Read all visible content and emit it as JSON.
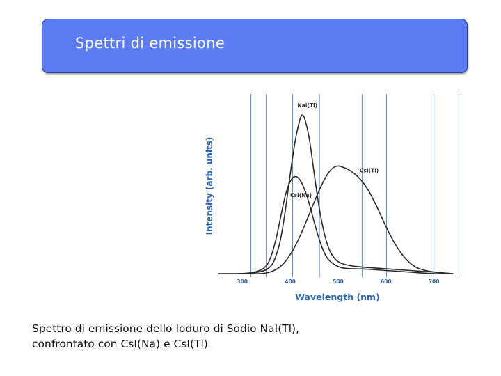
{
  "slide": {
    "title": "Spettri di emissione",
    "caption_line1": "Spettro di emissione dello Ioduro di Sodio NaI(Tl),",
    "caption_line2": "confrontato con CsI(Na) e CsI(Tl)"
  },
  "colors": {
    "title_bg": "#5b7cf3",
    "gridline": "#4a8fd6",
    "axis_text": "#2b66b3",
    "curve": "#2a2a2a"
  },
  "chart_data": {
    "type": "line",
    "title": "",
    "xlabel": "Wavelength (nm)",
    "ylabel": "Intensity (arb. units)",
    "xlim": [
      230,
      760
    ],
    "ylim": [
      0,
      1.1
    ],
    "x_ticks": [
      300,
      400,
      500,
      600,
      700
    ],
    "grid": "vertical",
    "series": [
      {
        "name": "NaI(Tl)",
        "label_pos": [
          415,
          1.02
        ],
        "points": [
          [
            250,
            0.02
          ],
          [
            300,
            0.02
          ],
          [
            340,
            0.03
          ],
          [
            360,
            0.06
          ],
          [
            370,
            0.12
          ],
          [
            380,
            0.22
          ],
          [
            390,
            0.4
          ],
          [
            400,
            0.62
          ],
          [
            410,
            0.82
          ],
          [
            420,
            0.95
          ],
          [
            425,
            0.98
          ],
          [
            430,
            0.96
          ],
          [
            440,
            0.84
          ],
          [
            450,
            0.62
          ],
          [
            460,
            0.42
          ],
          [
            470,
            0.27
          ],
          [
            480,
            0.17
          ],
          [
            490,
            0.12
          ],
          [
            500,
            0.09
          ],
          [
            520,
            0.07
          ],
          [
            550,
            0.06
          ],
          [
            600,
            0.05
          ],
          [
            650,
            0.04
          ],
          [
            700,
            0.03
          ],
          [
            740,
            0.02
          ]
        ]
      },
      {
        "name": "CsI(Tl)",
        "label_pos": [
          545,
          0.63
        ],
        "points": [
          [
            250,
            0.02
          ],
          [
            300,
            0.02
          ],
          [
            340,
            0.02
          ],
          [
            360,
            0.03
          ],
          [
            380,
            0.06
          ],
          [
            400,
            0.13
          ],
          [
            420,
            0.24
          ],
          [
            440,
            0.38
          ],
          [
            460,
            0.52
          ],
          [
            470,
            0.58
          ],
          [
            480,
            0.63
          ],
          [
            490,
            0.66
          ],
          [
            500,
            0.67
          ],
          [
            510,
            0.66
          ],
          [
            520,
            0.65
          ],
          [
            540,
            0.61
          ],
          [
            560,
            0.54
          ],
          [
            580,
            0.43
          ],
          [
            600,
            0.3
          ],
          [
            620,
            0.19
          ],
          [
            640,
            0.11
          ],
          [
            660,
            0.06
          ],
          [
            680,
            0.04
          ],
          [
            700,
            0.03
          ],
          [
            740,
            0.02
          ]
        ]
      },
      {
        "name": "CsI(Na)",
        "label_pos": [
          400,
          0.48
        ],
        "points": [
          [
            250,
            0.02
          ],
          [
            300,
            0.02
          ],
          [
            330,
            0.03
          ],
          [
            350,
            0.06
          ],
          [
            360,
            0.12
          ],
          [
            370,
            0.22
          ],
          [
            380,
            0.36
          ],
          [
            390,
            0.5
          ],
          [
            400,
            0.58
          ],
          [
            410,
            0.61
          ],
          [
            420,
            0.59
          ],
          [
            430,
            0.53
          ],
          [
            440,
            0.44
          ],
          [
            450,
            0.33
          ],
          [
            460,
            0.23
          ],
          [
            470,
            0.15
          ],
          [
            480,
            0.1
          ],
          [
            500,
            0.06
          ],
          [
            520,
            0.05
          ],
          [
            550,
            0.05
          ],
          [
            600,
            0.04
          ],
          [
            650,
            0.03
          ],
          [
            700,
            0.02
          ],
          [
            740,
            0.02
          ]
        ]
      }
    ]
  }
}
